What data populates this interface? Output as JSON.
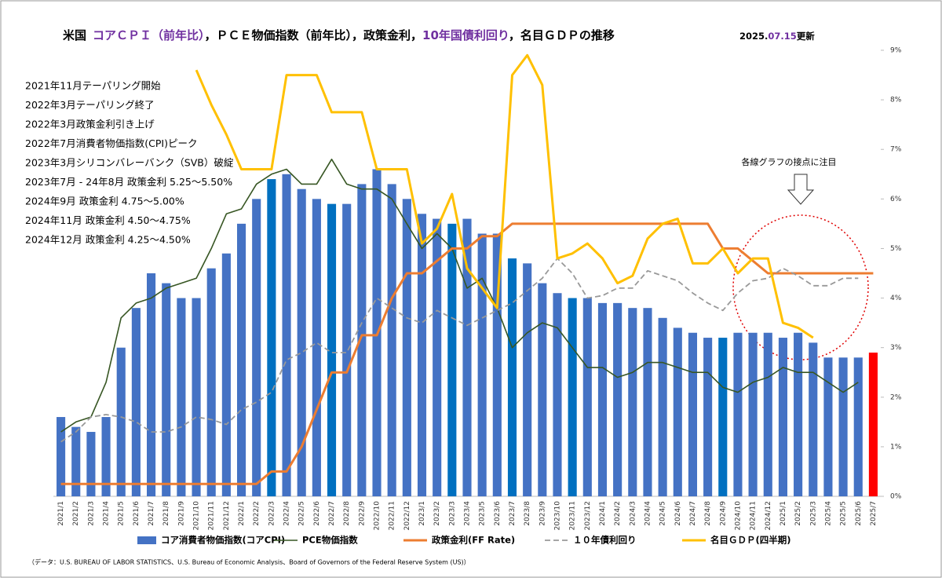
{
  "chart_data": {
    "type": "bar",
    "title_parts": [
      {
        "text": "米国",
        "color": "#000000"
      },
      {
        "text": "コアＣＰＩ（前年比）",
        "color": "#7030a0"
      },
      {
        "text": "，ＰＣＥ物価指数（前年比），政策金利，",
        "color": "#000000"
      },
      {
        "text": "10年国債利回り",
        "color": "#7030a0"
      },
      {
        "text": "，名目ＧＤＰの推移",
        "color": "#000000"
      }
    ],
    "updated_parts": [
      {
        "text": "2025.",
        "color": "#000000"
      },
      {
        "text": "07.15",
        "color": "#7030a0"
      },
      {
        "text": "更新",
        "color": "#000000"
      }
    ],
    "annotations": [
      "2021年11月テーパリング開始",
      "2022年3月テーパリング終了",
      "2022年3月政策金利引き上げ",
      "2022年7月消費者物価指数(CPI)ピーク",
      "2023年3月シリコンバレーバンク（SVB）破綻",
      "2023年7月 - 24年8月 政策金利 5.25～5.50%",
      "2024年9月 政策金利 4.75～5.00%",
      "2024年11月 政策金利 4.50～4.75%",
      "2024年12月 政策金利 4.25～4.50%"
    ],
    "callout": "各線グラフの接点に注目",
    "source": "（データ：U.S. BUREAU OF LABOR STATISTICS、U.S. Bureau of Economic Analysis、Board of Governors of the Federal Reserve System (US)）",
    "categories": [
      "2021/1",
      "2021/2",
      "2021/3",
      "2021/4",
      "2021/5",
      "2021/6",
      "2021/7",
      "2021/8",
      "2021/9",
      "2021/10",
      "2021/11",
      "2021/12",
      "2022/1",
      "2022/2",
      "2022/3",
      "2022/4",
      "2022/5",
      "2022/6",
      "2022/7",
      "2022/8",
      "2022/9",
      "2022/10",
      "2022/11",
      "2022/12",
      "2023/1",
      "2023/2",
      "2023/3",
      "2023/4",
      "2023/5",
      "2023/6",
      "2023/7",
      "2023/8",
      "2023/9",
      "2023/10",
      "2023/11",
      "2023/12",
      "2024/1",
      "2024/2",
      "2024/3",
      "2024/4",
      "2024/5",
      "2024/6",
      "2024/7",
      "2024/8",
      "2024/9",
      "2024/10",
      "2024/11",
      "2024/12",
      "2025/1",
      "2025/2",
      "2025/3",
      "2025/4",
      "2025/5",
      "2025/6",
      "2025/7"
    ],
    "ylim": [
      0,
      9
    ],
    "yticks": [
      {
        "value": 0,
        "label": "0%"
      },
      {
        "value": 1,
        "label": "1%"
      },
      {
        "value": 2,
        "label": "2%"
      },
      {
        "value": 3,
        "label": "3%"
      },
      {
        "value": 4,
        "label": "4%"
      },
      {
        "value": 5,
        "label": "5%"
      },
      {
        "value": 6,
        "label": "6%"
      },
      {
        "value": 7,
        "label": "7%"
      },
      {
        "value": 8,
        "label": "8%"
      },
      {
        "value": 9,
        "label": "9%"
      }
    ],
    "series": [
      {
        "name": "コア消費者物価指数(コアCPI)",
        "kind": "bar",
        "color": "#4472c4",
        "values": [
          1.6,
          1.4,
          1.3,
          1.6,
          3.0,
          3.8,
          4.5,
          4.3,
          4.0,
          4.0,
          4.6,
          4.9,
          5.5,
          6.0,
          6.4,
          6.5,
          6.2,
          6.0,
          5.9,
          5.9,
          6.3,
          6.6,
          6.3,
          6.0,
          5.7,
          5.6,
          5.5,
          5.6,
          5.3,
          5.3,
          4.8,
          4.7,
          4.3,
          4.1,
          4.0,
          4.0,
          3.9,
          3.9,
          3.8,
          3.8,
          3.6,
          3.4,
          3.3,
          3.2,
          3.2,
          3.3,
          3.3,
          3.3,
          3.2,
          3.3,
          3.1,
          2.8,
          2.8,
          2.8,
          2.9
        ],
        "colors": [
          "#4472c4",
          "#4472c4",
          "#4472c4",
          "#4472c4",
          "#4472c4",
          "#4472c4",
          "#4472c4",
          "#4472c4",
          "#4472c4",
          "#4472c4",
          "#4472c4",
          "#4472c4",
          "#4472c4",
          "#4472c4",
          "#0070c0",
          "#4472c4",
          "#4472c4",
          "#4472c4",
          "#0070c0",
          "#4472c4",
          "#4472c4",
          "#4472c4",
          "#4472c4",
          "#4472c4",
          "#4472c4",
          "#4472c4",
          "#0070c0",
          "#4472c4",
          "#4472c4",
          "#4472c4",
          "#0070c0",
          "#4472c4",
          "#4472c4",
          "#4472c4",
          "#0070c0",
          "#4472c4",
          "#4472c4",
          "#4472c4",
          "#4472c4",
          "#4472c4",
          "#4472c4",
          "#4472c4",
          "#4472c4",
          "#4472c4",
          "#0070c0",
          "#4472c4",
          "#4472c4",
          "#4472c4",
          "#4472c4",
          "#4472c4",
          "#4472c4",
          "#4472c4",
          "#4472c4",
          "#4472c4",
          "#ff0000"
        ]
      },
      {
        "name": "PCE物価指数",
        "kind": "line",
        "color": "#375623",
        "width": 1.6,
        "dash": false,
        "values": [
          1.3,
          1.5,
          1.6,
          2.3,
          3.6,
          3.9,
          4.0,
          4.2,
          4.3,
          4.4,
          5.0,
          5.7,
          5.8,
          6.3,
          6.5,
          6.6,
          6.3,
          6.3,
          6.8,
          6.3,
          6.2,
          6.2,
          6.0,
          5.5,
          5.0,
          5.3,
          5.0,
          4.2,
          4.4,
          3.8,
          3.0,
          3.3,
          3.5,
          3.4,
          3.0,
          2.6,
          2.6,
          2.4,
          2.5,
          2.7,
          2.7,
          2.6,
          2.5,
          2.5,
          2.2,
          2.1,
          2.3,
          2.4,
          2.6,
          2.5,
          2.5,
          2.3,
          2.1,
          2.3,
          null
        ]
      },
      {
        "name": "政策金利(FF Rate)",
        "kind": "line",
        "color": "#ed7d31",
        "width": 3,
        "dash": false,
        "values": [
          0.25,
          0.25,
          0.25,
          0.25,
          0.25,
          0.25,
          0.25,
          0.25,
          0.25,
          0.25,
          0.25,
          0.25,
          0.25,
          0.25,
          0.5,
          0.5,
          1.0,
          1.75,
          2.5,
          2.5,
          3.25,
          3.25,
          4.0,
          4.5,
          4.5,
          4.75,
          5.0,
          5.0,
          5.25,
          5.25,
          5.5,
          5.5,
          5.5,
          5.5,
          5.5,
          5.5,
          5.5,
          5.5,
          5.5,
          5.5,
          5.5,
          5.5,
          5.5,
          5.5,
          5.0,
          5.0,
          4.75,
          4.5,
          4.5,
          4.5,
          4.5,
          4.5,
          4.5,
          4.5,
          4.5
        ]
      },
      {
        "name": "１０年債利回り",
        "kind": "line",
        "color": "#999999",
        "width": 1.8,
        "dash": true,
        "values": [
          1.1,
          1.3,
          1.6,
          1.65,
          1.6,
          1.5,
          1.3,
          1.3,
          1.4,
          1.6,
          1.55,
          1.45,
          1.75,
          1.9,
          2.1,
          2.75,
          2.9,
          3.1,
          2.9,
          2.9,
          3.5,
          4.0,
          3.8,
          3.6,
          3.5,
          3.75,
          3.6,
          3.45,
          3.6,
          3.75,
          3.9,
          4.15,
          4.4,
          4.8,
          4.5,
          4.0,
          4.05,
          4.2,
          4.2,
          4.55,
          4.45,
          4.35,
          4.1,
          3.9,
          3.75,
          4.1,
          4.35,
          4.4,
          4.6,
          4.45,
          4.25,
          4.25,
          4.4,
          4.4,
          null
        ]
      },
      {
        "name": "名目ＧＤＰ(四半期)",
        "kind": "line",
        "color": "#ffc000",
        "width": 3,
        "dash": false,
        "values": [
          null,
          null,
          null,
          null,
          null,
          null,
          null,
          null,
          null,
          8.6,
          7.9,
          7.3,
          6.6,
          6.6,
          6.6,
          8.5,
          8.5,
          8.5,
          7.75,
          7.75,
          7.75,
          6.6,
          6.6,
          6.6,
          5.1,
          5.4,
          6.1,
          4.6,
          4.2,
          3.8,
          8.5,
          8.9,
          8.3,
          4.8,
          4.9,
          5.1,
          4.8,
          4.3,
          4.45,
          5.2,
          5.5,
          5.6,
          4.7,
          4.7,
          5.0,
          4.5,
          4.8,
          4.8,
          3.5,
          3.4,
          3.2,
          null,
          null,
          null,
          null
        ]
      }
    ],
    "grid": false
  }
}
